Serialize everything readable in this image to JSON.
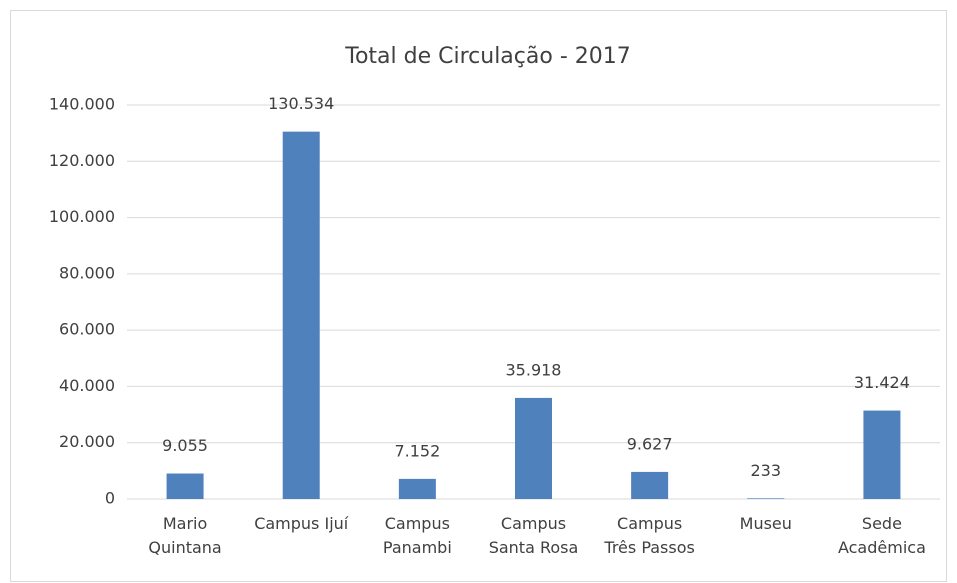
{
  "chart_data": {
    "type": "bar",
    "title": "Total de Circulação - 2017",
    "categories": [
      "Mario Quintana",
      "Campus Ijuí",
      "Campus Panambi",
      "Campus Santa Rosa",
      "Campus Três Passos",
      "Museu",
      "Sede Acadêmica"
    ],
    "values": [
      9055,
      130534,
      7152,
      35918,
      9627,
      233,
      31424
    ],
    "value_labels": [
      "9.055",
      "130.534",
      "7.152",
      "35.918",
      "9.627",
      "233",
      "31.424"
    ],
    "color": "#4f81bd",
    "ylim": [
      0,
      140000
    ],
    "yticks": [
      0,
      {
        "value": 20000,
        "label": "20.000"
      },
      {
        "value": 40000,
        "label": "40.000"
      },
      {
        "value": 60000,
        "label": "60.000"
      },
      {
        "value": 80000,
        "label": "80.000"
      },
      {
        "value": 100000,
        "label": "100.000"
      },
      {
        "value": 120000,
        "label": "120.000"
      },
      {
        "value": 140000,
        "label": "140.000"
      }
    ],
    "grid": true
  }
}
